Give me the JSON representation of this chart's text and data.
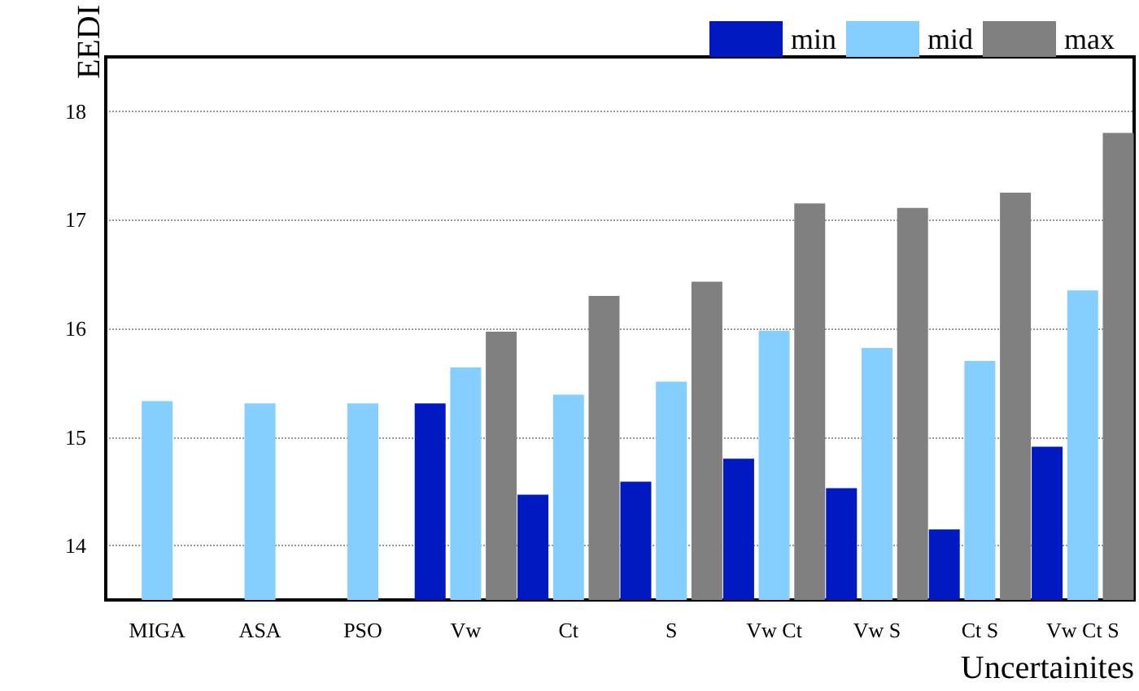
{
  "chart_data": {
    "type": "bar",
    "xlabel": "Uncertainites",
    "ylabel": "EEDI",
    "categories": [
      "MIGA",
      "ASA",
      "PSO",
      "Vw",
      "Ct",
      "S",
      "Vw Ct",
      "Vw S",
      "Ct S",
      "Vw Ct S"
    ],
    "series": [
      {
        "name": "min",
        "color": "#0019c0",
        "values": [
          null,
          null,
          null,
          15.31,
          14.47,
          14.59,
          14.8,
          14.53,
          14.15,
          14.91
        ]
      },
      {
        "name": "mid",
        "color": "#84cfff",
        "values": [
          15.33,
          15.31,
          15.31,
          15.64,
          15.39,
          15.51,
          15.98,
          15.82,
          15.7,
          16.35
        ]
      },
      {
        "name": "max",
        "color": "#808080",
        "values": [
          null,
          null,
          null,
          15.97,
          16.3,
          16.43,
          17.15,
          17.11,
          17.25,
          17.8
        ]
      }
    ],
    "ylim": [
      13.5,
      18.5
    ],
    "yticks": [
      14,
      15,
      16,
      17,
      18
    ],
    "grid": "y",
    "legend": "top right"
  }
}
